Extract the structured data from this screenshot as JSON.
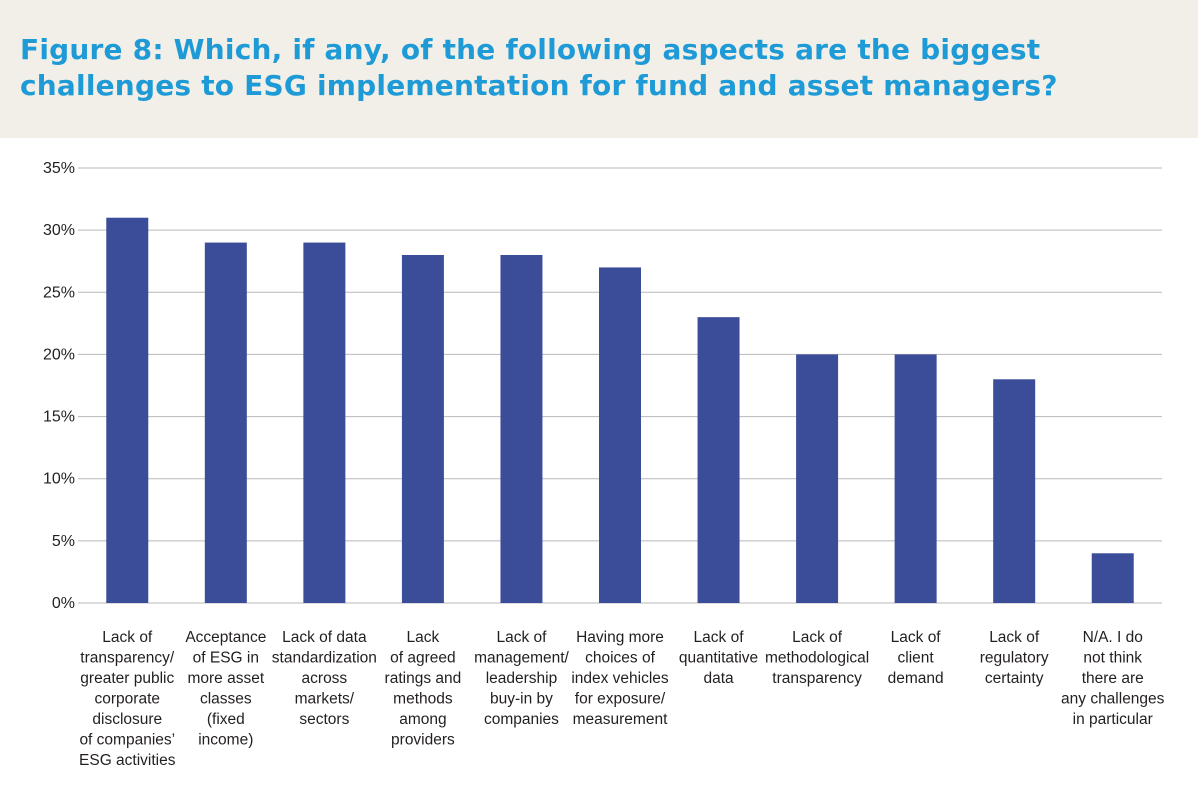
{
  "title": "Figure 8: Which, if any, of the following aspects are the biggest challenges to ESG implementation for fund and asset managers?",
  "colors": {
    "bar": "#3b4d99",
    "grid": "#b9b9b9",
    "title": "#1e9bd7",
    "header_bg": "#f1efe7"
  },
  "chart_data": {
    "type": "bar",
    "title": "Figure 8: Which, if any, of the following aspects are the biggest challenges to ESG implementation for fund and asset managers?",
    "xlabel": "",
    "ylabel": "",
    "ylim": [
      0,
      35
    ],
    "yticks": [
      0,
      5,
      10,
      15,
      20,
      25,
      30,
      35
    ],
    "ytick_labels": [
      "0%",
      "5%",
      "10%",
      "15%",
      "20%",
      "25%",
      "30%",
      "35%"
    ],
    "grid": true,
    "categories": [
      [
        "Lack of",
        "transparency/",
        "greater public",
        "corporate",
        "disclosure",
        "of companies’",
        "ESG activities"
      ],
      [
        "Acceptance",
        "of ESG in",
        "more asset",
        "classes",
        "(fixed",
        "income)"
      ],
      [
        "Lack of data",
        "standardization",
        "across",
        "markets/",
        "sectors"
      ],
      [
        "Lack",
        "of agreed",
        "ratings and",
        "methods",
        "among",
        "providers"
      ],
      [
        "Lack of",
        "management/",
        "leadership",
        "buy-in by",
        "companies"
      ],
      [
        "Having more",
        "choices of",
        "index vehicles",
        "for exposure/",
        "measurement"
      ],
      [
        "Lack of",
        "quantitative",
        "data"
      ],
      [
        "Lack of",
        "methodological",
        "transparency"
      ],
      [
        "Lack of",
        "client",
        "demand"
      ],
      [
        "Lack of",
        "regulatory",
        "certainty"
      ],
      [
        "N/A. I do",
        "not think",
        "there are",
        "any challenges",
        "in particular"
      ]
    ],
    "values": [
      31,
      29,
      29,
      28,
      28,
      27,
      23,
      20,
      20,
      18,
      4
    ]
  }
}
